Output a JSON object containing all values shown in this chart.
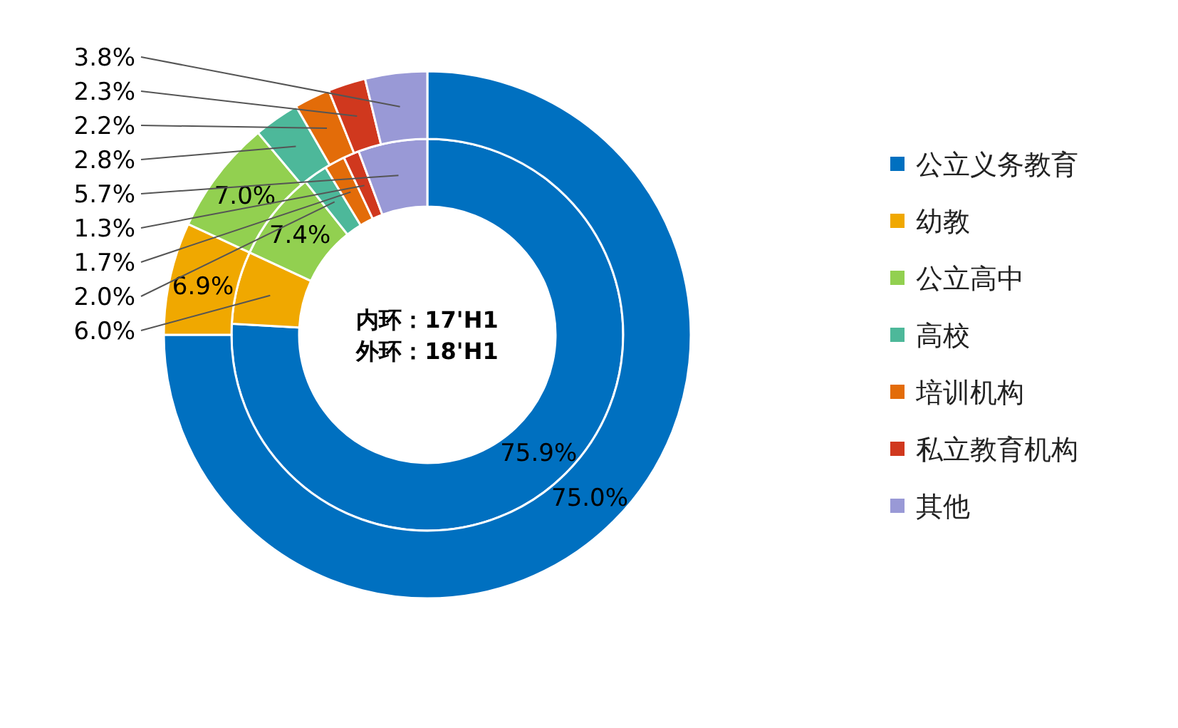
{
  "chart_data": {
    "type": "donut",
    "categories": [
      "公立义务教育",
      "幼教",
      "公立高中",
      "高校",
      "培训机构",
      "私立教育机构",
      "其他"
    ],
    "colors": [
      "#0070c0",
      "#f0a800",
      "#92d050",
      "#4db89a",
      "#e36c09",
      "#d0381e",
      "#9999d6"
    ],
    "series": [
      {
        "values": [
          75.9,
          6.0,
          7.4,
          2.0,
          1.7,
          1.3,
          5.7
        ],
        "value_labels": [
          "75.9%",
          "6.0%",
          "7.4%",
          "2.0%",
          "1.7%",
          "1.3%",
          "5.7%"
        ]
      },
      {
        "values": [
          75.0,
          6.9,
          7.0,
          2.8,
          2.2,
          2.3,
          3.8
        ],
        "value_labels": [
          "75.0%",
          "6.9%",
          "7.0%",
          "2.8%",
          "2.2%",
          "2.3%",
          "3.8%"
        ]
      }
    ],
    "annotations": [
      "内环：17'H1",
      "外环：18'H1"
    ],
    "legend": "right"
  }
}
